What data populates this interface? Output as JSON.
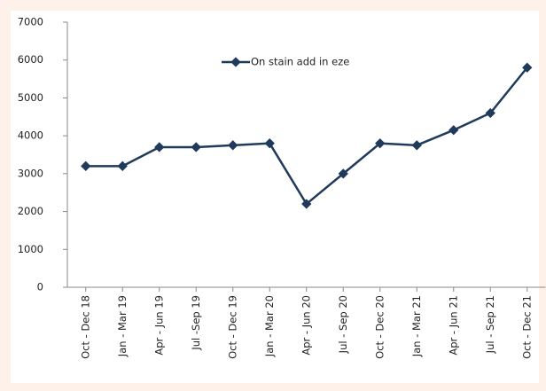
{
  "chart_data": {
    "type": "line",
    "categories": [
      "Oct - Dec 18",
      "Jan - Mar 19",
      "Apr - Jun 19",
      "Jul -Sep 19",
      "Oct - Dec 19",
      "Jan - Mar 20",
      "Apr - Jun 20",
      "Jul - Sep 20",
      "Oct - Dec 20",
      "Jan - Mar 21",
      "Apr - Jun 21",
      "Jul - Sep 21",
      "Oct - Dec 21"
    ],
    "series": [
      {
        "name": "On stain add in eze",
        "color": "#1f3a5a",
        "values": [
          3200,
          3200,
          3700,
          3700,
          3750,
          3800,
          2200,
          3000,
          3800,
          3750,
          4150,
          4600,
          5800
        ]
      }
    ],
    "ylim": [
      0,
      7000
    ],
    "yticks": [
      0,
      1000,
      2000,
      3000,
      4000,
      5000,
      6000,
      7000
    ],
    "grid": false,
    "legend": "top"
  }
}
